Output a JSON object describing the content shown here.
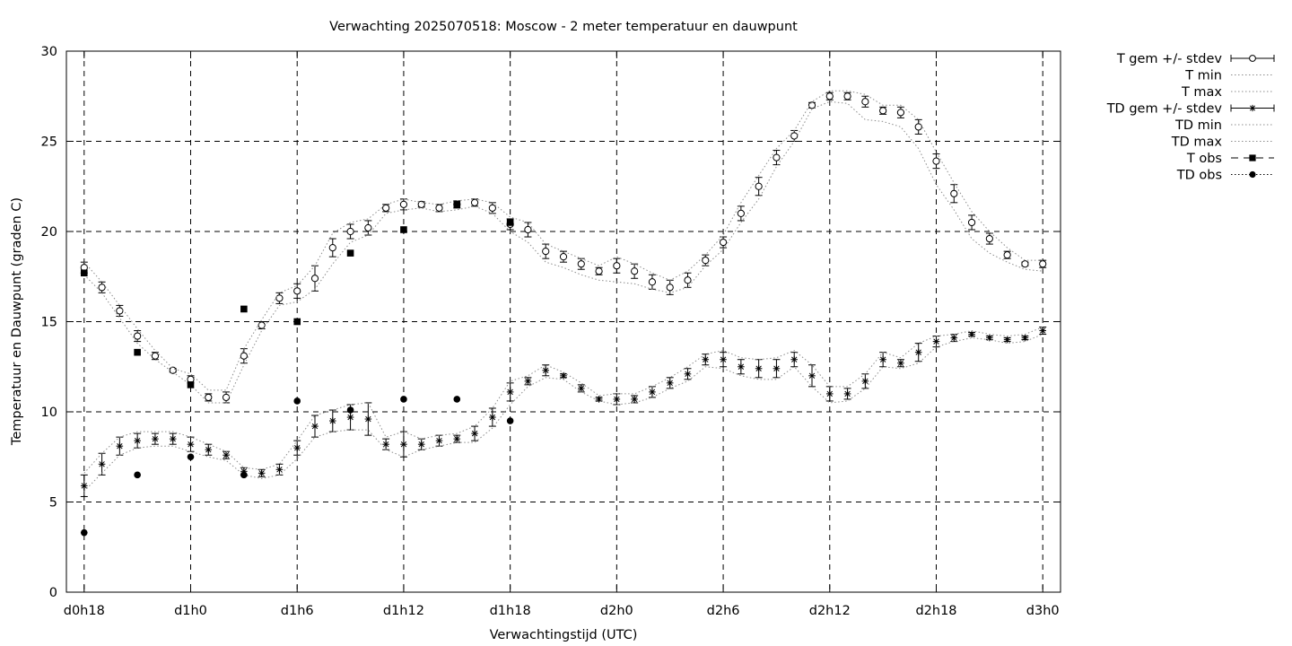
{
  "chart_data": {
    "type": "line",
    "title": "Verwachting 2025070518: Moscow - 2 meter temperatuur en dauwpunt",
    "xlabel": "Verwachtingstijd (UTC)",
    "ylabel": "Temperatuur en Dauwpunt (graden C)",
    "xlim": [
      -1,
      55
    ],
    "ylim": [
      0,
      30
    ],
    "x_unit": "hours since d0h18",
    "yticks": [
      0,
      5,
      10,
      15,
      20,
      25,
      30
    ],
    "xticks": [
      {
        "x": 0,
        "label": "d0h18"
      },
      {
        "x": 6,
        "label": "d1h0"
      },
      {
        "x": 12,
        "label": "d1h6"
      },
      {
        "x": 18,
        "label": "d1h12"
      },
      {
        "x": 24,
        "label": "d1h18"
      },
      {
        "x": 30,
        "label": "d2h0"
      },
      {
        "x": 36,
        "label": "d2h6"
      },
      {
        "x": 42,
        "label": "d2h12"
      },
      {
        "x": 48,
        "label": "d2h18"
      },
      {
        "x": 54,
        "label": "d3h0"
      }
    ],
    "grid": true,
    "legend_position": "outside-top-right",
    "x": [
      0,
      1,
      2,
      3,
      4,
      5,
      6,
      7,
      8,
      9,
      10,
      11,
      12,
      13,
      14,
      15,
      16,
      17,
      18,
      19,
      20,
      21,
      22,
      23,
      24,
      25,
      26,
      27,
      28,
      29,
      30,
      31,
      32,
      33,
      34,
      35,
      36,
      37,
      38,
      39,
      40,
      41,
      42,
      43,
      44,
      45,
      46,
      47,
      48,
      49,
      50,
      51,
      52,
      53,
      54
    ],
    "series": [
      {
        "name": "T gem +/- stdev",
        "style": "errorbars-circle",
        "values": [
          18.0,
          16.9,
          15.6,
          14.2,
          13.1,
          12.3,
          11.8,
          10.8,
          10.8,
          13.1,
          14.8,
          16.3,
          16.7,
          17.4,
          19.1,
          20.0,
          20.2,
          21.3,
          21.5,
          21.5,
          21.3,
          21.5,
          21.6,
          21.3,
          20.4,
          20.1,
          18.9,
          18.6,
          18.2,
          17.8,
          18.1,
          17.8,
          17.2,
          16.9,
          17.3,
          18.4,
          19.4,
          21.0,
          22.5,
          24.1,
          25.3,
          27.0,
          27.5,
          27.5,
          27.2,
          26.7,
          26.6,
          25.8,
          23.9,
          22.1,
          20.5,
          19.6,
          18.7,
          18.2,
          18.2
        ],
        "stdev": [
          0.3,
          0.3,
          0.3,
          0.3,
          0.2,
          0.1,
          0.2,
          0.2,
          0.3,
          0.4,
          0.2,
          0.3,
          0.4,
          0.7,
          0.5,
          0.4,
          0.4,
          0.2,
          0.3,
          0.15,
          0.2,
          0.2,
          0.2,
          0.3,
          0.3,
          0.4,
          0.4,
          0.3,
          0.3,
          0.2,
          0.4,
          0.4,
          0.4,
          0.4,
          0.4,
          0.3,
          0.3,
          0.4,
          0.5,
          0.4,
          0.3,
          0.15,
          0.2,
          0.2,
          0.3,
          0.2,
          0.3,
          0.4,
          0.4,
          0.5,
          0.4,
          0.3,
          0.2,
          0.1,
          0.2
        ]
      },
      {
        "name": "T min",
        "style": "dotted",
        "values": [
          17.6,
          16.6,
          15.2,
          13.8,
          12.9,
          12.2,
          11.5,
          10.5,
          10.5,
          12.6,
          14.5,
          15.9,
          16.1,
          16.8,
          18.2,
          19.4,
          19.8,
          21.0,
          21.2,
          21.3,
          21.1,
          21.2,
          21.4,
          21.0,
          20.0,
          19.4,
          18.3,
          18.0,
          17.6,
          17.3,
          17.2,
          17.1,
          16.8,
          16.6,
          16.9,
          18.1,
          19.0,
          20.5,
          21.8,
          23.6,
          25.0,
          26.8,
          27.2,
          27.1,
          26.2,
          26.1,
          25.8,
          24.6,
          22.6,
          21.2,
          19.6,
          18.8,
          18.3,
          17.9,
          17.8
        ]
      },
      {
        "name": "T max",
        "style": "dotted",
        "values": [
          18.3,
          17.2,
          15.9,
          14.6,
          13.4,
          12.4,
          12.1,
          11.2,
          11.2,
          13.5,
          15.1,
          16.6,
          17.0,
          18.1,
          19.9,
          20.5,
          20.7,
          21.5,
          21.8,
          21.6,
          21.5,
          21.7,
          21.8,
          21.6,
          20.8,
          20.5,
          19.3,
          18.9,
          18.5,
          18.1,
          18.6,
          18.2,
          17.7,
          17.3,
          17.8,
          18.7,
          19.8,
          21.6,
          23.1,
          24.6,
          25.6,
          27.2,
          27.8,
          27.8,
          27.6,
          27.0,
          27.0,
          26.2,
          24.4,
          22.7,
          21.1,
          20.0,
          19.1,
          18.4,
          18.4
        ]
      },
      {
        "name": "TD gem +/- stdev",
        "style": "errorbars-star",
        "values": [
          5.9,
          7.1,
          8.1,
          8.4,
          8.5,
          8.5,
          8.2,
          7.9,
          7.6,
          6.7,
          6.6,
          6.8,
          8.0,
          9.2,
          9.5,
          9.7,
          9.6,
          8.2,
          8.2,
          8.2,
          8.4,
          8.5,
          8.8,
          9.7,
          11.1,
          11.7,
          12.3,
          12.0,
          11.3,
          10.7,
          10.7,
          10.7,
          11.1,
          11.6,
          12.1,
          12.9,
          12.9,
          12.5,
          12.4,
          12.4,
          12.9,
          12.0,
          11.0,
          11.0,
          11.7,
          12.9,
          12.7,
          13.3,
          13.9,
          14.1,
          14.3,
          14.1,
          14.0,
          14.1,
          14.5
        ],
        "stdev": [
          0.6,
          0.6,
          0.5,
          0.4,
          0.3,
          0.3,
          0.4,
          0.3,
          0.2,
          0.2,
          0.2,
          0.3,
          0.4,
          0.6,
          0.6,
          0.7,
          0.9,
          0.3,
          0.7,
          0.3,
          0.3,
          0.2,
          0.4,
          0.5,
          0.5,
          0.2,
          0.3,
          0.1,
          0.2,
          0.1,
          0.3,
          0.2,
          0.3,
          0.3,
          0.3,
          0.3,
          0.4,
          0.4,
          0.5,
          0.5,
          0.4,
          0.6,
          0.4,
          0.3,
          0.4,
          0.4,
          0.2,
          0.5,
          0.3,
          0.2,
          0.1,
          0.1,
          0.1,
          0.1,
          0.2
        ]
      },
      {
        "name": "TD min",
        "style": "dotted",
        "values": [
          5.6,
          6.6,
          7.6,
          8.0,
          8.1,
          8.1,
          7.8,
          7.5,
          7.3,
          6.5,
          6.3,
          6.5,
          7.4,
          8.6,
          8.9,
          9.0,
          9.0,
          7.9,
          7.5,
          7.9,
          8.1,
          8.3,
          8.3,
          9.1,
          10.4,
          11.4,
          11.9,
          11.8,
          11.1,
          10.6,
          10.4,
          10.5,
          10.8,
          11.3,
          11.7,
          12.5,
          12.4,
          12.0,
          11.8,
          11.8,
          12.5,
          11.4,
          10.5,
          10.6,
          11.3,
          12.5,
          12.4,
          12.7,
          13.6,
          13.9,
          14.1,
          14.0,
          13.8,
          13.9,
          14.3
        ]
      },
      {
        "name": "TD max",
        "style": "dotted",
        "values": [
          6.6,
          7.7,
          8.6,
          8.9,
          8.9,
          8.9,
          8.6,
          8.2,
          7.8,
          6.9,
          6.8,
          7.1,
          8.4,
          9.8,
          10.1,
          10.4,
          10.5,
          8.6,
          8.9,
          8.5,
          8.7,
          8.8,
          9.2,
          10.2,
          11.7,
          12.0,
          12.6,
          12.2,
          11.6,
          10.9,
          11.0,
          11.0,
          11.4,
          11.9,
          12.5,
          13.2,
          13.4,
          13.0,
          12.9,
          13.0,
          13.4,
          12.6,
          11.4,
          11.4,
          12.1,
          13.3,
          13.0,
          13.8,
          14.2,
          14.3,
          14.5,
          14.3,
          14.2,
          14.3,
          14.7
        ]
      },
      {
        "name": "T obs",
        "style": "square",
        "points": [
          [
            0,
            17.7
          ],
          [
            3,
            13.3
          ],
          [
            6,
            11.5
          ],
          [
            9,
            15.7
          ],
          [
            12,
            15.0
          ],
          [
            15,
            18.8
          ],
          [
            18,
            20.1
          ],
          [
            21,
            21.5
          ],
          [
            24,
            20.5
          ]
        ]
      },
      {
        "name": "TD obs",
        "style": "dot",
        "points": [
          [
            0,
            3.3
          ],
          [
            3,
            6.5
          ],
          [
            6,
            7.5
          ],
          [
            9,
            6.5
          ],
          [
            12,
            10.6
          ],
          [
            15,
            10.1
          ],
          [
            18,
            10.7
          ],
          [
            21,
            10.7
          ],
          [
            24,
            9.5
          ]
        ]
      }
    ]
  }
}
